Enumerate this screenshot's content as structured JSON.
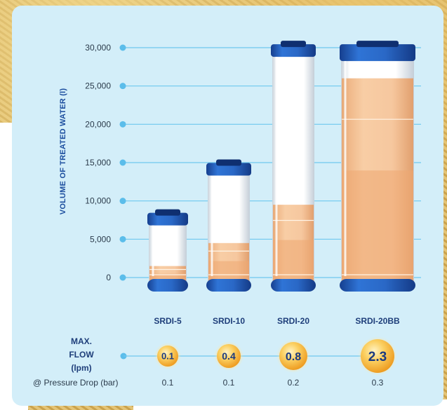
{
  "chart_data": {
    "type": "bar",
    "ylabel": "VOLUME OF TREATED WATER (l)",
    "ylim": [
      0,
      30000
    ],
    "yticks": [
      "30,000",
      "25,000",
      "20,000",
      "15,000",
      "10,000",
      "5,000",
      "0"
    ],
    "categories": [
      "SRDI-5",
      "SRDI-10",
      "SRDI-20",
      "SRDI-20BB"
    ],
    "series": [
      {
        "values": [
          1500,
          4500,
          9500,
          26000
        ]
      }
    ],
    "max_flow_label": [
      "MAX.",
      "FLOW",
      "(lpm)"
    ],
    "max_flow": [
      "0.1",
      "0.4",
      "0.8",
      "2.3"
    ],
    "pressure_drop_label": "@ Pressure Drop (bar)",
    "pressure_drop": [
      "0.1",
      "0.1",
      "0.2",
      "0.3"
    ],
    "grid": true,
    "colors": {
      "panel": "#d3eef9",
      "grid_line": "#6ec8ef",
      "cap_blue": "#1f5bb8",
      "fill_orange": "#f0b07a",
      "bubble_orange": "#f6b33a"
    }
  }
}
